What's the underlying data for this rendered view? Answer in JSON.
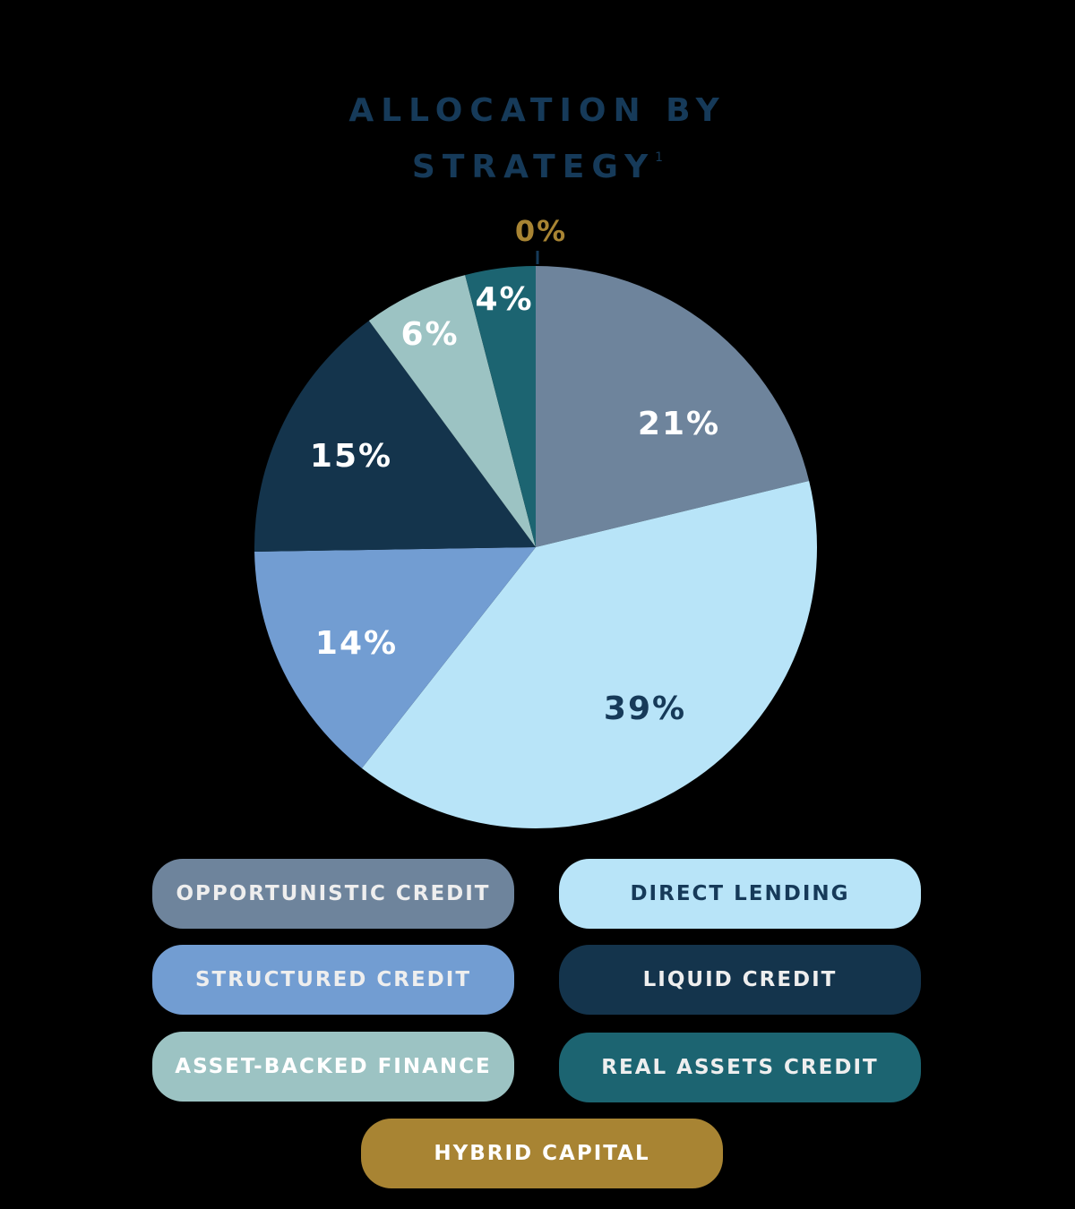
{
  "title": {
    "line1": "ALLOCATION BY",
    "line2": "STRATEGY",
    "footnote": "1"
  },
  "zero_callout": {
    "label": "0%",
    "color": "#a88433"
  },
  "chart_data": {
    "type": "pie",
    "title": "Allocation by Strategy",
    "start_angle": "12 o'clock",
    "direction": "clockwise",
    "categories": [
      "Opportunistic Credit",
      "Direct Lending",
      "Structured Credit",
      "Liquid Credit",
      "Asset-Backed Finance",
      "Real Assets Credit",
      "Hybrid Capital"
    ],
    "values": [
      21,
      39,
      14,
      15,
      6,
      4,
      0
    ],
    "unit": "%",
    "colors": [
      "#6e849c",
      "#b8e4f8",
      "#729dd2",
      "#14344c",
      "#9cc3c3",
      "#1c6471",
      "#a88433"
    ],
    "label_colors": [
      "#ffffff",
      "#163a59",
      "#ffffff",
      "#ffffff",
      "#ffffff",
      "#ffffff",
      "#a88433"
    ],
    "data_labels": [
      "21%",
      "39%",
      "14%",
      "15%",
      "6%",
      "4%",
      "0%"
    ],
    "legend_position": "bottom"
  },
  "legend": [
    {
      "label": "OPPORTUNISTIC CREDIT",
      "bg": "#6e849c",
      "fg": "#eeeeee"
    },
    {
      "label": "DIRECT LENDING",
      "bg": "#b8e4f8",
      "fg": "#163a59"
    },
    {
      "label": "STRUCTURED CREDIT",
      "bg": "#729dd2",
      "fg": "#eeeeee"
    },
    {
      "label": "LIQUID CREDIT",
      "bg": "#14344c",
      "fg": "#eeeeee"
    },
    {
      "label": "ASSET-BACKED FINANCE",
      "bg": "#9cc3c3",
      "fg": "#ffffff"
    },
    {
      "label": "REAL ASSETS CREDIT",
      "bg": "#1c6471",
      "fg": "#eeeeee"
    },
    {
      "label": "HYBRID CAPITAL",
      "bg": "#a88433",
      "fg": "#ffffff"
    }
  ]
}
